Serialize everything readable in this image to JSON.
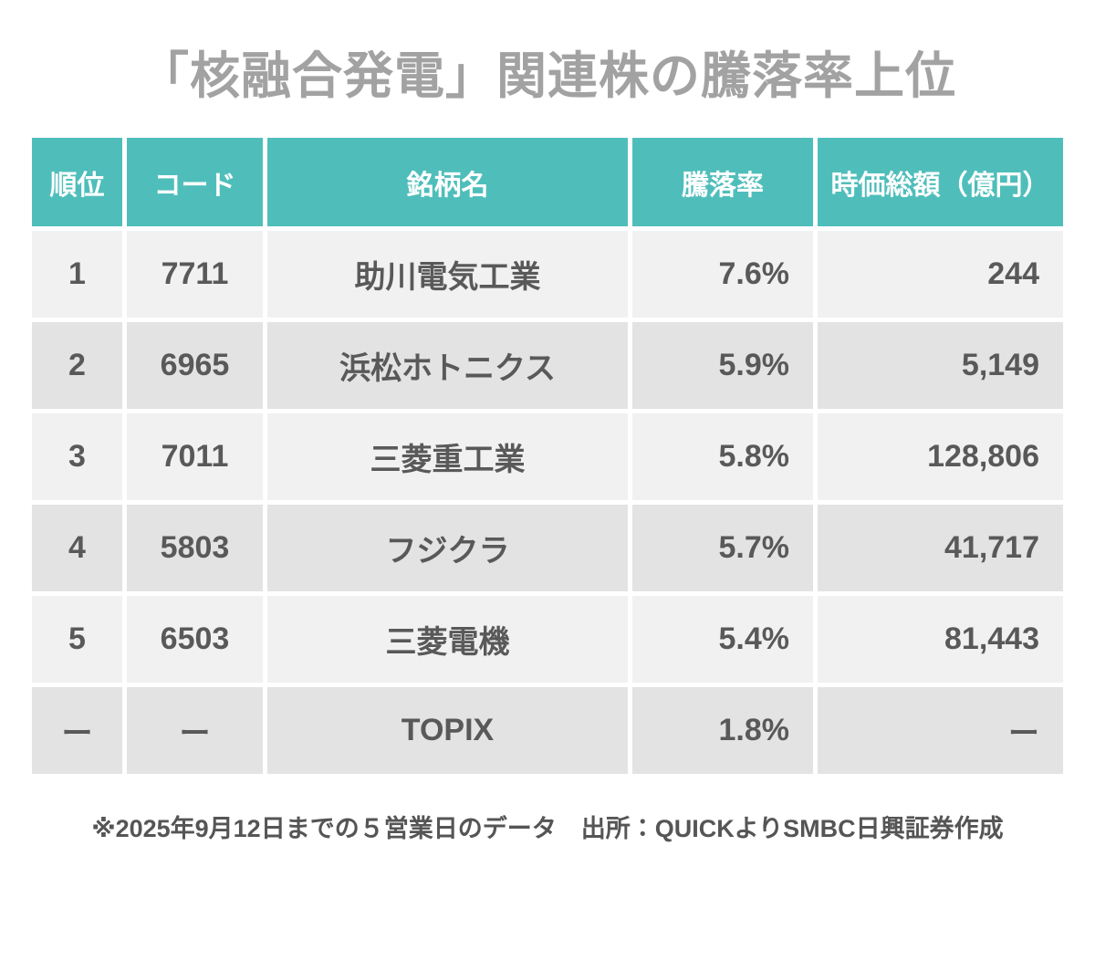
{
  "chart_data": {
    "type": "table",
    "title": "「核融合発電」関連株の騰落率上位",
    "columns": [
      "順位",
      "コード",
      "銘柄名",
      "騰落率",
      "時価総額（億円）"
    ],
    "rows": [
      [
        "1",
        "7711",
        "助川電気工業",
        "7.6%",
        "244"
      ],
      [
        "2",
        "6965",
        "浜松ホトニクス",
        "5.9%",
        "5,149"
      ],
      [
        "3",
        "7011",
        "三菱重工業",
        "5.8%",
        "128,806"
      ],
      [
        "4",
        "5803",
        "フジクラ",
        "5.7%",
        "41,717"
      ],
      [
        "5",
        "6503",
        "三菱電機",
        "5.4%",
        "81,443"
      ],
      [
        "ー",
        "ー",
        "TOPIX",
        "1.8%",
        "ー"
      ]
    ],
    "change_rate_pct": [
      7.6,
      5.9,
      5.8,
      5.7,
      5.4,
      1.8
    ],
    "market_cap_oku_yen": [
      244,
      5149,
      128806,
      41717,
      81443,
      null
    ],
    "note": "※2025年9月12日までの５営業日のデータ　出所：QUICKよりSMBC日興証券作成"
  },
  "colors": {
    "header_bg": "#4fbebb",
    "header_text": "#ffffff",
    "row_light": "#f1f1f1",
    "row_dark": "#e3e3e3",
    "cell_text": "#595959",
    "title_text": "#a2a2a2",
    "note_text": "#555555"
  }
}
